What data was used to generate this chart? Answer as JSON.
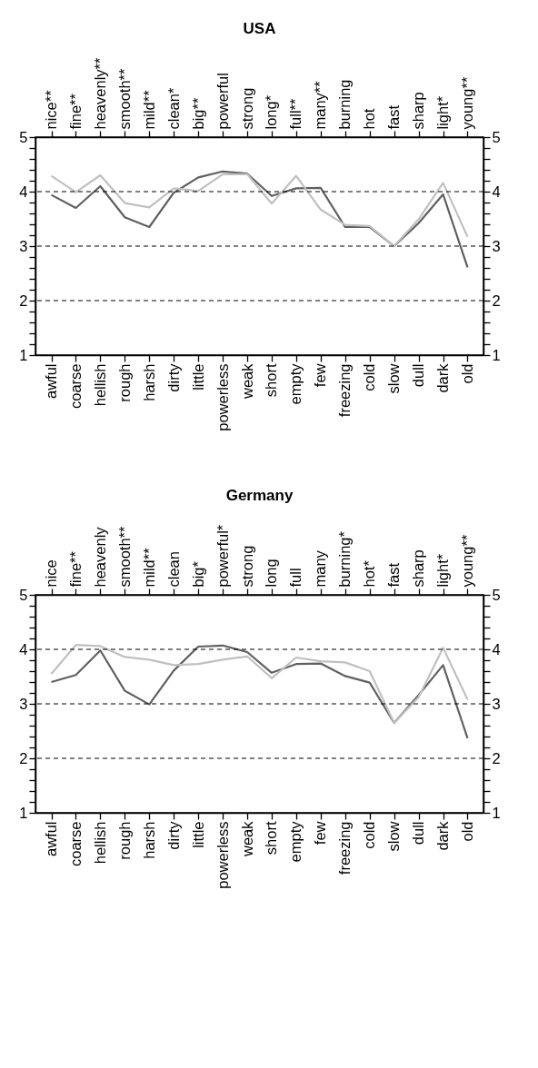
{
  "chart_data": [
    {
      "type": "line",
      "title": "USA",
      "categories": [
        "awful",
        "coarse",
        "hellish",
        "rough",
        "harsh",
        "dirty",
        "little",
        "powerless",
        "weak",
        "short",
        "empty",
        "few",
        "freezing",
        "cold",
        "slow",
        "dull",
        "dark",
        "old"
      ],
      "annotations": [
        {
          "text": "nice**",
          "x": "awful"
        },
        {
          "text": "fine**",
          "x": "coarse"
        },
        {
          "text": "heavenly**",
          "x": "hellish"
        },
        {
          "text": "smooth**",
          "x": "rough"
        },
        {
          "text": "mild**",
          "x": "harsh"
        },
        {
          "text": "clean*",
          "x": "dirty"
        },
        {
          "text": "big**",
          "x": "little"
        },
        {
          "text": "powerful",
          "x": "powerless"
        },
        {
          "text": "strong",
          "x": "weak"
        },
        {
          "text": "long*",
          "x": "short"
        },
        {
          "text": "full**",
          "x": "empty"
        },
        {
          "text": "many**",
          "x": "few"
        },
        {
          "text": "burning",
          "x": "freezing"
        },
        {
          "text": "hot",
          "x": "cold"
        },
        {
          "text": "fast",
          "x": "slow"
        },
        {
          "text": "sharp",
          "x": "dull"
        },
        {
          "text": "light*",
          "x": "dark"
        },
        {
          "text": "young**",
          "x": "old"
        }
      ],
      "ylim": [
        1,
        5
      ],
      "yticks": [
        1,
        {
          "value": 1.2,
          "label": null
        },
        {
          "value": 1.4,
          "label": null
        },
        {
          "value": 1.6,
          "label": null
        },
        {
          "value": 1.8,
          "label": null
        },
        2,
        {
          "value": 2.2,
          "label": null
        },
        {
          "value": 2.4,
          "label": null
        },
        {
          "value": 2.6,
          "label": null
        },
        {
          "value": 2.8,
          "label": null
        },
        3,
        {
          "value": 3.2,
          "label": null
        },
        {
          "value": 3.4,
          "label": null
        },
        {
          "value": 3.6,
          "label": null
        },
        {
          "value": 3.8,
          "label": null
        },
        4,
        {
          "value": 4.2,
          "label": null
        },
        {
          "value": 4.4,
          "label": null
        },
        {
          "value": 4.6,
          "label": null
        },
        {
          "value": 4.8,
          "label": null
        },
        5
      ],
      "y2lim": [
        1,
        5
      ],
      "y2ticks": [
        1,
        {
          "value": 1.2,
          "label": null
        },
        {
          "value": 1.4,
          "label": null
        },
        {
          "value": 1.6,
          "label": null
        },
        {
          "value": 1.8,
          "label": null
        },
        2,
        {
          "value": 2.2,
          "label": null
        },
        {
          "value": 2.4,
          "label": null
        },
        {
          "value": 2.6,
          "label": null
        },
        {
          "value": 2.8,
          "label": null
        },
        3,
        {
          "value": 3.2,
          "label": null
        },
        {
          "value": 3.4,
          "label": null
        },
        {
          "value": 3.6,
          "label": null
        },
        {
          "value": 3.8,
          "label": null
        },
        4,
        {
          "value": 4.2,
          "label": null
        },
        {
          "value": 4.4,
          "label": null
        },
        {
          "value": 4.6,
          "label": null
        },
        {
          "value": 4.8,
          "label": null
        },
        5
      ],
      "series": [
        {
          "color": "#606060",
          "values": [
            3.94,
            3.7,
            4.1,
            3.53,
            3.35,
            3.98,
            4.26,
            4.37,
            4.33,
            3.92,
            4.06,
            4.07,
            3.35,
            3.35,
            3.0,
            3.42,
            3.95,
            2.61
          ]
        },
        {
          "color": "#c0c0c0",
          "values": [
            4.29,
            3.99,
            4.3,
            3.79,
            3.71,
            4.06,
            4.01,
            4.32,
            4.32,
            3.78,
            4.29,
            3.67,
            3.39,
            3.37,
            3.0,
            3.49,
            4.16,
            3.17
          ]
        }
      ],
      "ref_lines": [
        {
          "axis": "y",
          "value": 2,
          "color": "#000000",
          "line_style": "dashed"
        },
        {
          "axis": "y",
          "value": 3,
          "color": "#000000",
          "line_style": "dashed"
        },
        {
          "axis": "y",
          "value": 4,
          "color": "#000000",
          "line_style": "dashed"
        }
      ]
    },
    {
      "type": "line",
      "title": "Germany",
      "categories": [
        "awful",
        "coarse",
        "hellish",
        "rough",
        "harsh",
        "dirty",
        "little",
        "powerless",
        "weak",
        "short",
        "empty",
        "few",
        "freezing",
        "cold",
        "slow",
        "dull",
        "dark",
        "old"
      ],
      "annotations": [
        {
          "text": "nice",
          "x": "awful"
        },
        {
          "text": "fine**",
          "x": "coarse"
        },
        {
          "text": "heavenly",
          "x": "hellish"
        },
        {
          "text": "smooth**",
          "x": "rough"
        },
        {
          "text": "mild**",
          "x": "harsh"
        },
        {
          "text": "clean",
          "x": "dirty"
        },
        {
          "text": "big*",
          "x": "little"
        },
        {
          "text": "powerful*",
          "x": "powerless"
        },
        {
          "text": "strong",
          "x": "weak"
        },
        {
          "text": "long",
          "x": "short"
        },
        {
          "text": "full",
          "x": "empty"
        },
        {
          "text": "many",
          "x": "few"
        },
        {
          "text": "burning*",
          "x": "freezing"
        },
        {
          "text": "hot*",
          "x": "cold"
        },
        {
          "text": "fast",
          "x": "slow"
        },
        {
          "text": "sharp",
          "x": "dull"
        },
        {
          "text": "light*",
          "x": "dark"
        },
        {
          "text": "young**",
          "x": "old"
        }
      ],
      "ylim": [
        1,
        5
      ],
      "yticks": [
        1,
        {
          "value": 1.2,
          "label": null
        },
        {
          "value": 1.4,
          "label": null
        },
        {
          "value": 1.6,
          "label": null
        },
        {
          "value": 1.8,
          "label": null
        },
        2,
        {
          "value": 2.2,
          "label": null
        },
        {
          "value": 2.4,
          "label": null
        },
        {
          "value": 2.6,
          "label": null
        },
        {
          "value": 2.8,
          "label": null
        },
        3,
        {
          "value": 3.2,
          "label": null
        },
        {
          "value": 3.4,
          "label": null
        },
        {
          "value": 3.6,
          "label": null
        },
        {
          "value": 3.8,
          "label": null
        },
        4,
        {
          "value": 4.2,
          "label": null
        },
        {
          "value": 4.4,
          "label": null
        },
        {
          "value": 4.6,
          "label": null
        },
        {
          "value": 4.8,
          "label": null
        },
        5
      ],
      "y2lim": [
        1,
        5
      ],
      "y2ticks": [
        1,
        {
          "value": 1.2,
          "label": null
        },
        {
          "value": 1.4,
          "label": null
        },
        {
          "value": 1.6,
          "label": null
        },
        {
          "value": 1.8,
          "label": null
        },
        2,
        {
          "value": 2.2,
          "label": null
        },
        {
          "value": 2.4,
          "label": null
        },
        {
          "value": 2.6,
          "label": null
        },
        {
          "value": 2.8,
          "label": null
        },
        3,
        {
          "value": 3.2,
          "label": null
        },
        {
          "value": 3.4,
          "label": null
        },
        {
          "value": 3.6,
          "label": null
        },
        {
          "value": 3.8,
          "label": null
        },
        4,
        {
          "value": 4.2,
          "label": null
        },
        {
          "value": 4.4,
          "label": null
        },
        {
          "value": 4.6,
          "label": null
        },
        {
          "value": 4.8,
          "label": null
        },
        5
      ],
      "series": [
        {
          "color": "#606060",
          "values": [
            3.4,
            3.53,
            3.98,
            3.24,
            2.99,
            3.61,
            4.05,
            4.07,
            3.95,
            3.57,
            3.73,
            3.74,
            3.51,
            3.39,
            2.65,
            3.16,
            3.71,
            2.37
          ]
        },
        {
          "color": "#c0c0c0",
          "values": [
            3.55,
            4.08,
            4.06,
            3.86,
            3.81,
            3.71,
            3.73,
            3.81,
            3.87,
            3.47,
            3.85,
            3.78,
            3.76,
            3.6,
            2.65,
            3.12,
            4.03,
            3.08
          ]
        }
      ],
      "ref_lines": [
        {
          "axis": "y",
          "value": 2,
          "color": "#000000",
          "line_style": "dashed"
        },
        {
          "axis": "y",
          "value": 3,
          "color": "#000000",
          "line_style": "dashed"
        },
        {
          "axis": "y",
          "value": 4,
          "color": "#000000",
          "line_style": "dashed"
        }
      ]
    }
  ]
}
